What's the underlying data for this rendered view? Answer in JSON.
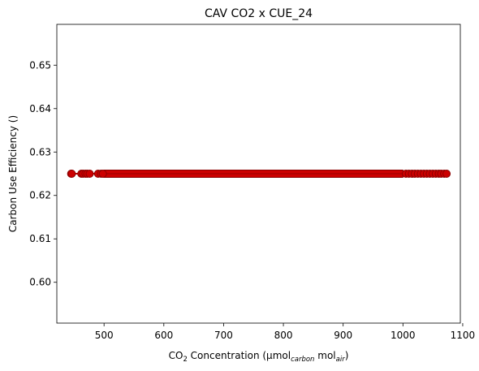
{
  "chart_data": {
    "type": "scatter",
    "title": "CAV CO2 x CUE_24",
    "xlabel": {
      "prefix": "CO",
      "sub1": "2",
      "middle": " Concentration (µmol",
      "sub2": "carbon",
      "mol": " mol",
      "sub3": "air",
      "suffix": ")"
    },
    "ylabel": "Carbon Use Efficiency ()",
    "xlim": [
      421,
      1096
    ],
    "ylim": [
      0.5906,
      0.6594
    ],
    "xticks": [
      500,
      600,
      700,
      800,
      900,
      1000,
      1100
    ],
    "yticks": [
      0.6,
      0.61,
      0.62,
      0.63,
      0.64,
      0.65
    ],
    "ytick_labels": [
      "0.60",
      "0.61",
      "0.62",
      "0.63",
      "0.64",
      "0.65"
    ],
    "series": [
      {
        "color": "#cc0000",
        "edge_color": "#8b0000",
        "line_color": "#b30000",
        "marker": "circle",
        "x_range": [
          445,
          1073
        ],
        "y": 0.625,
        "sparse_points": [
          445,
          446,
          462,
          465,
          469,
          472,
          476,
          490,
          495,
          498,
          1005,
          1010,
          1015,
          1020,
          1025,
          1030,
          1035,
          1040,
          1045,
          1050,
          1055,
          1060,
          1064,
          1069,
          1073
        ]
      }
    ],
    "grid": false,
    "legend": "none"
  }
}
